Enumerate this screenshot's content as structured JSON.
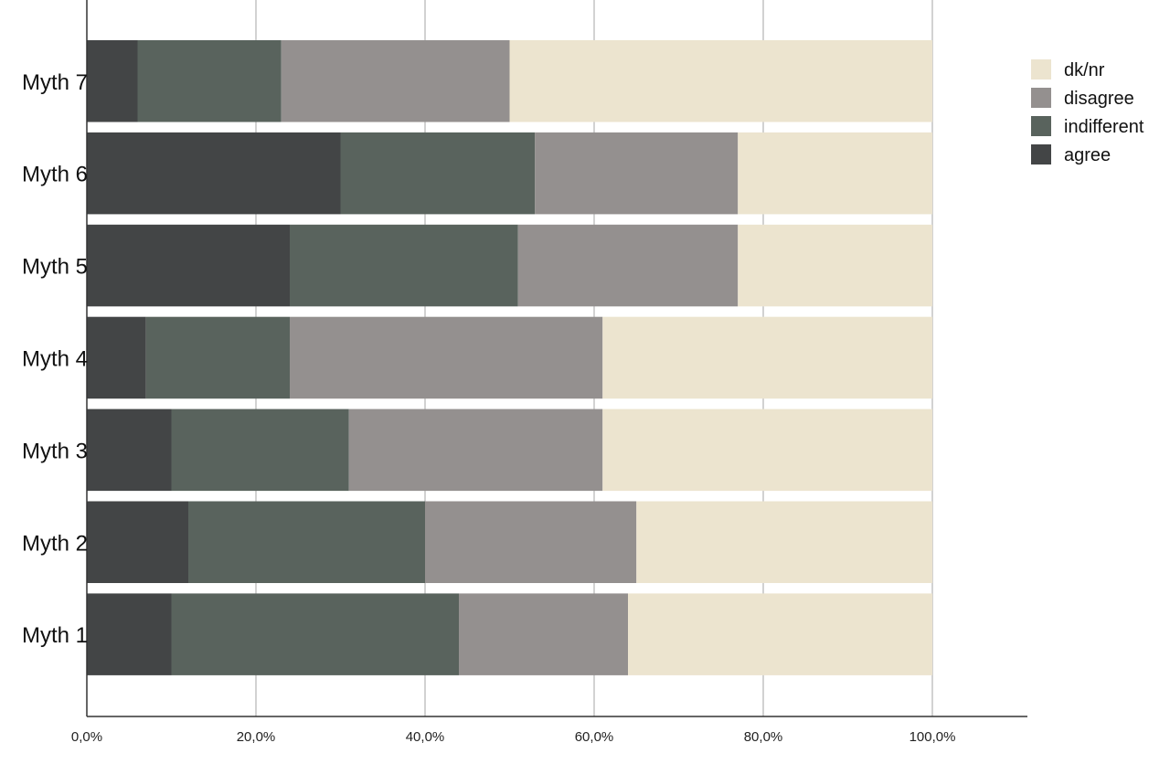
{
  "chart_data": {
    "type": "bar",
    "orientation": "horizontal",
    "stacked": true,
    "categories": [
      "Myth 7",
      "Myth 6",
      "Myth 5",
      "Myth 4",
      "Myth 3",
      "Myth 2",
      "Myth 1"
    ],
    "series": [
      {
        "name": "agree",
        "color": "#434546",
        "values": [
          6,
          30,
          24,
          7,
          10,
          12,
          10
        ]
      },
      {
        "name": "indifferent",
        "color": "#59635d",
        "values": [
          17,
          23,
          27,
          17,
          21,
          28,
          34
        ]
      },
      {
        "name": "disagree",
        "color": "#94908f",
        "values": [
          27,
          24,
          26,
          37,
          30,
          25,
          20
        ]
      },
      {
        "name": "dk/nr",
        "color": "#ece4cf",
        "values": [
          50,
          23,
          23,
          39,
          39,
          35,
          36
        ]
      }
    ],
    "legend_order": [
      "dk/nr",
      "disagree",
      "indifferent",
      "agree"
    ],
    "legend_position": "top-right",
    "x_ticks": [
      "0,0%",
      "20,0%",
      "40,0%",
      "60,0%",
      "80,0%",
      "100,0%"
    ],
    "xlim": [
      0,
      100
    ],
    "grid": true,
    "title": "",
    "xlabel": "",
    "ylabel": ""
  }
}
